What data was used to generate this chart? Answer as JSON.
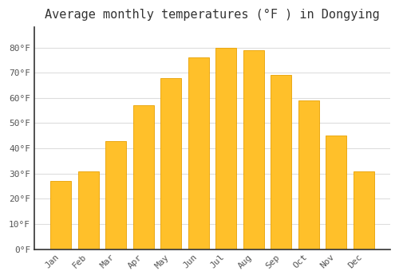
{
  "title": "Average monthly temperatures (°F ) in Dongying",
  "months": [
    "Jan",
    "Feb",
    "Mar",
    "Apr",
    "May",
    "Jun",
    "Jul",
    "Aug",
    "Sep",
    "Oct",
    "Nov",
    "Dec"
  ],
  "values": [
    27,
    31,
    43,
    57,
    68,
    76,
    80,
    79,
    69,
    59,
    45,
    31
  ],
  "bar_color": "#FFC02A",
  "bar_edge_color": "#E8A000",
  "background_color": "#FFFFFF",
  "grid_color": "#DDDDDD",
  "ylim": [
    0,
    88
  ],
  "yticks": [
    0,
    10,
    20,
    30,
    40,
    50,
    60,
    70,
    80
  ],
  "ytick_labels": [
    "0°F",
    "10°F",
    "20°F",
    "30°F",
    "40°F",
    "50°F",
    "60°F",
    "70°F",
    "80°F"
  ],
  "title_fontsize": 11,
  "tick_fontsize": 8,
  "font_family": "monospace",
  "spine_color": "#333333"
}
